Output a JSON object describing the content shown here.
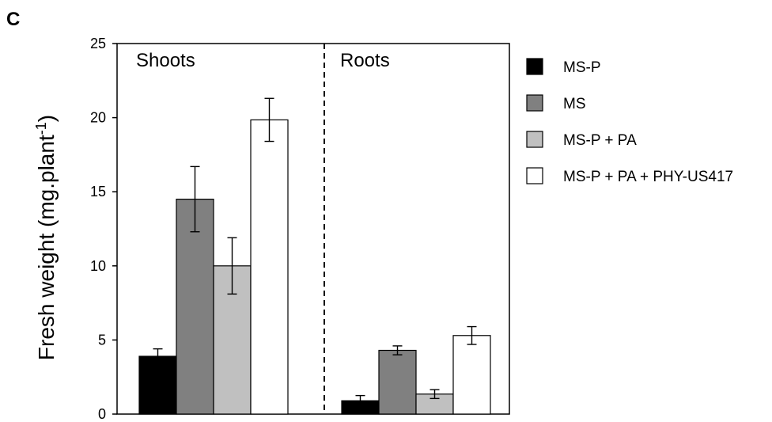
{
  "panel_label": "C",
  "chart_data": {
    "type": "bar",
    "groups": [
      "Shoots",
      "Roots"
    ],
    "series": [
      {
        "name": "MS-P",
        "color": "#000000",
        "values": [
          3.9,
          0.9
        ],
        "errors": [
          0.5,
          0.35
        ]
      },
      {
        "name": "MS",
        "color": "#808080",
        "values": [
          14.5,
          4.3
        ],
        "errors": [
          2.2,
          0.3
        ]
      },
      {
        "name": "MS-P + PA",
        "color": "#c0c0c0",
        "values": [
          10.0,
          1.35
        ],
        "errors": [
          1.9,
          0.3
        ]
      },
      {
        "name": "MS-P + PA + PHY-US417",
        "color": "#ffffff",
        "values": [
          19.85,
          5.3
        ],
        "errors": [
          1.45,
          0.6
        ]
      }
    ],
    "ylabel": {
      "main": "Fresh weight (mg.plant",
      "sup": "-1",
      "close": ")"
    },
    "ylim": [
      0,
      25
    ],
    "yticks": [
      "0",
      "5",
      "10",
      "15",
      "20",
      "25"
    ],
    "group_divider": "dashed",
    "grid": false,
    "legend_position": "right"
  }
}
